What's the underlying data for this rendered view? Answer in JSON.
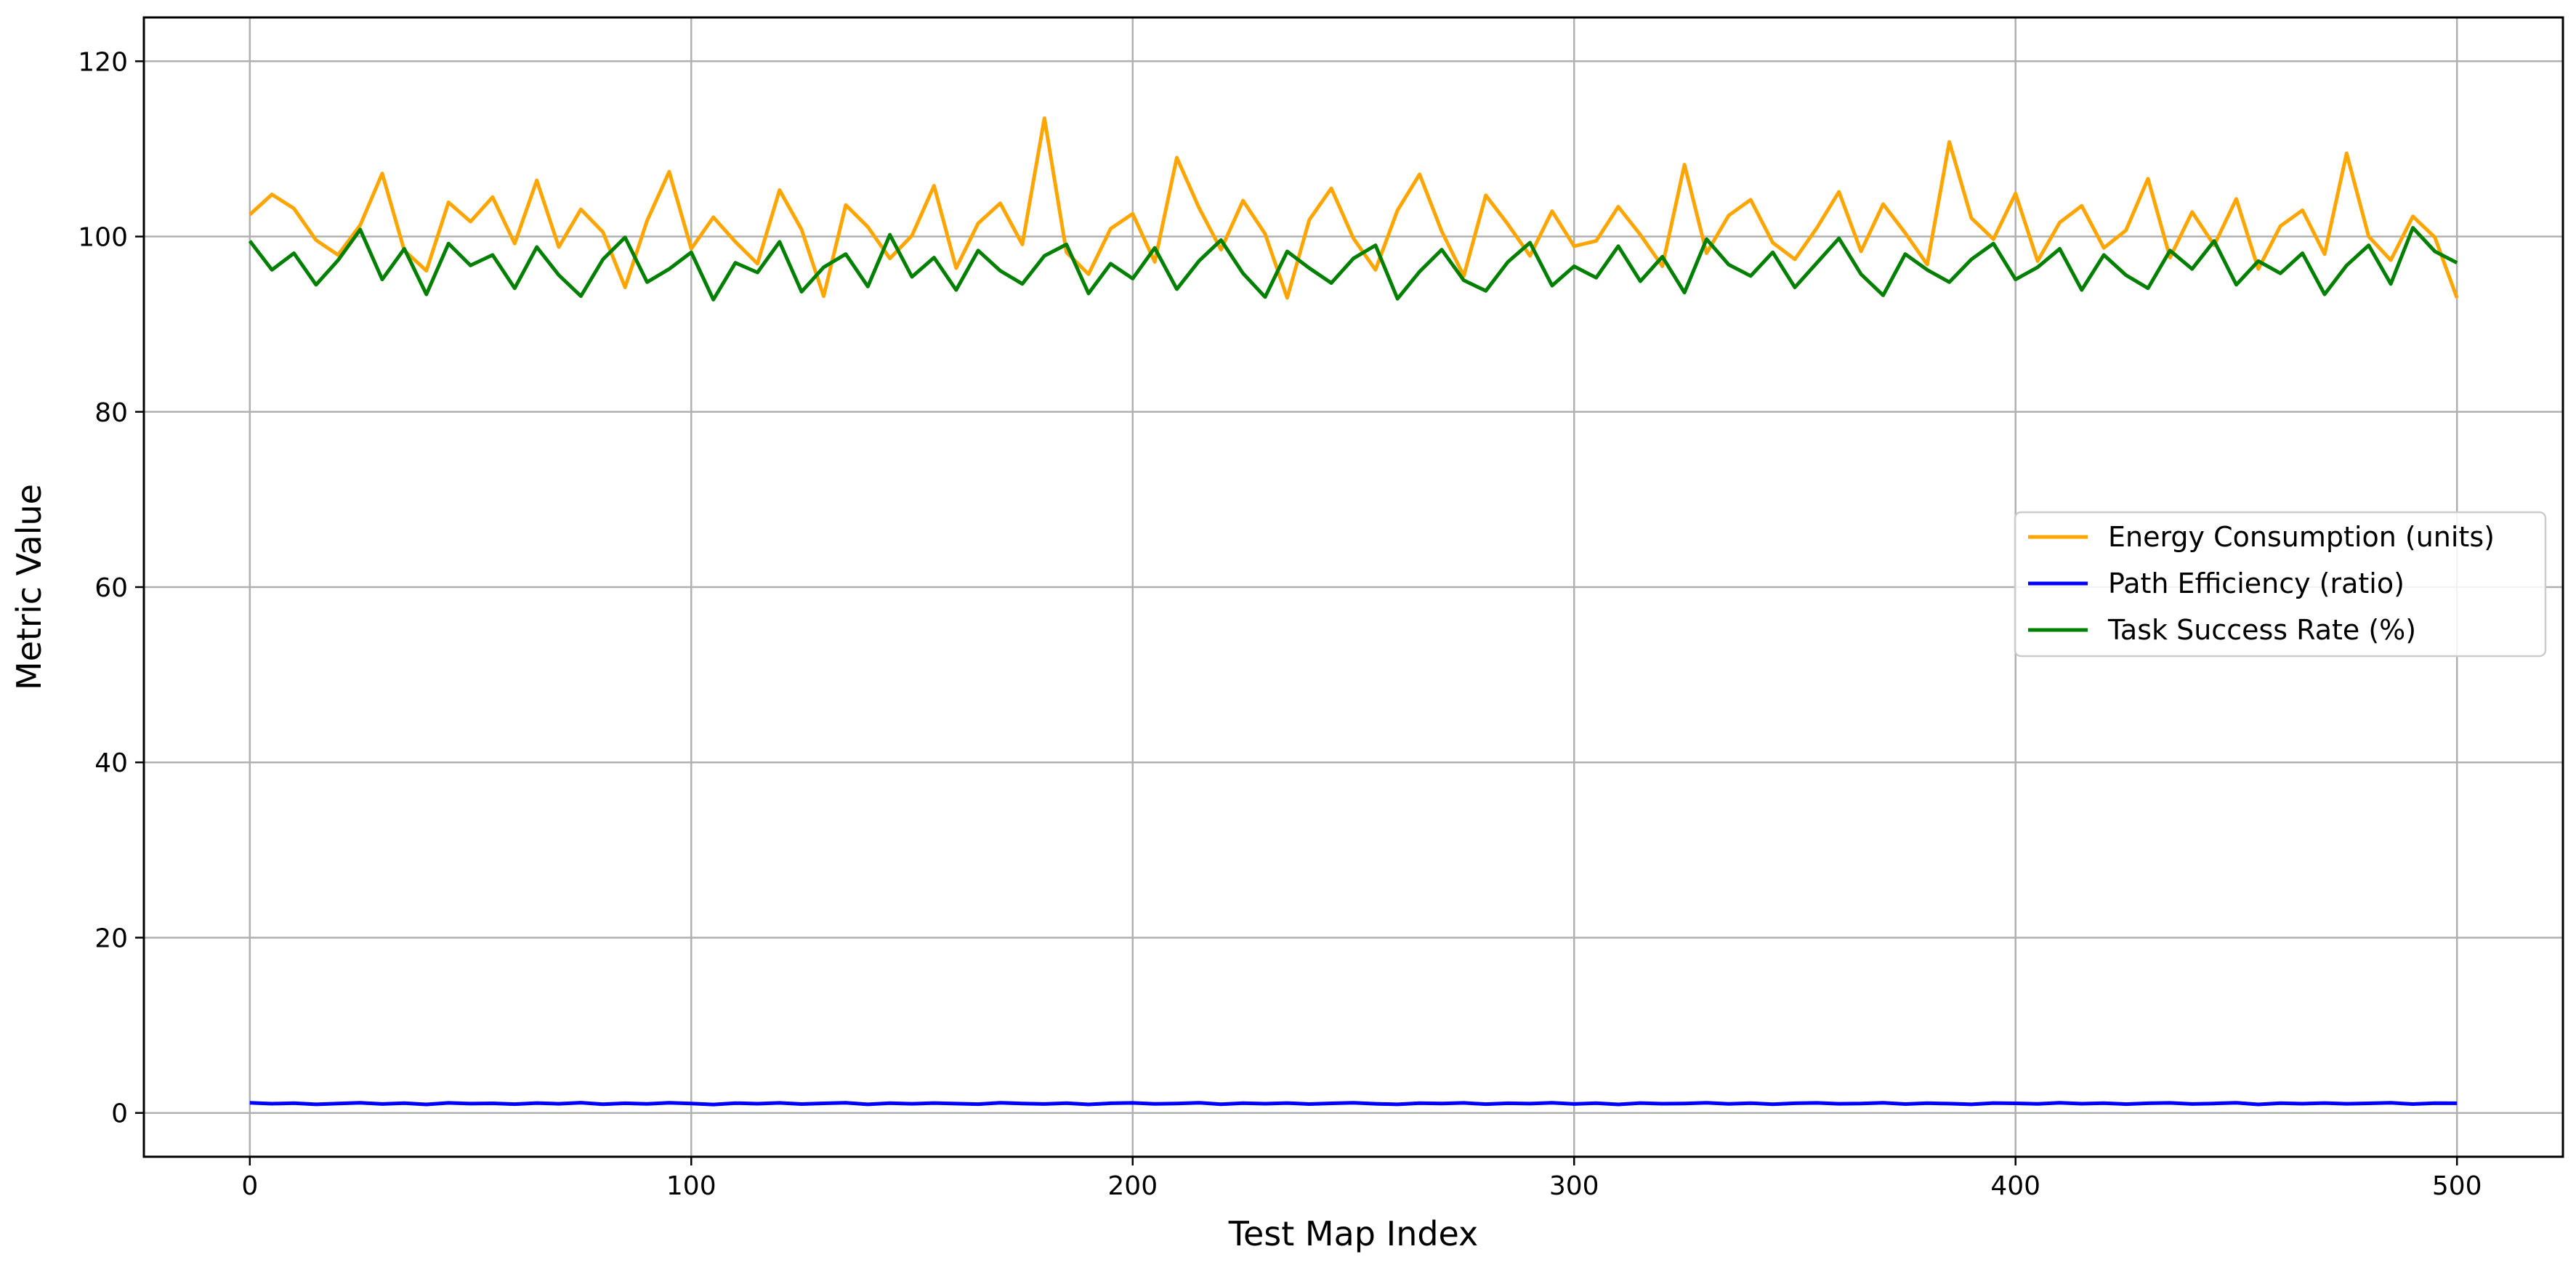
{
  "chart_data": {
    "type": "line",
    "title": "",
    "xlabel": "Test Map Index",
    "ylabel": "Metric Value",
    "xlim": [
      -24,
      524
    ],
    "ylim": [
      -5,
      125
    ],
    "xticks": [
      0,
      100,
      200,
      300,
      400,
      500
    ],
    "yticks": [
      0,
      20,
      40,
      60,
      80,
      100,
      120
    ],
    "grid": true,
    "legend_position": "center-right",
    "series": [
      {
        "name": "Energy Consumption (units)",
        "color": "#ffa500",
        "x_start": 0,
        "x_step": 5,
        "values": [
          102.5,
          104.8,
          103.2,
          99.6,
          97.9,
          101.3,
          107.2,
          98.4,
          96.1,
          103.9,
          101.7,
          104.5,
          99.2,
          106.4,
          98.8,
          103.1,
          100.5,
          94.2,
          101.8,
          107.4,
          98.6,
          102.2,
          99.4,
          96.9,
          105.3,
          100.8,
          93.2,
          103.6,
          101.1,
          97.5,
          100.1,
          105.8,
          96.4,
          101.5,
          103.8,
          99.1,
          113.5,
          98.2,
          95.7,
          100.9,
          102.6,
          97.1,
          109.0,
          103.3,
          98.5,
          104.1,
          100.3,
          93.0,
          101.9,
          105.5,
          99.8,
          96.2,
          103.0,
          107.1,
          100.6,
          95.5,
          104.7,
          101.4,
          97.8,
          102.9,
          98.9,
          99.5,
          103.4,
          100.2,
          96.6,
          108.2,
          98.1,
          102.4,
          104.2,
          99.3,
          97.4,
          101.0,
          105.1,
          98.3,
          103.7,
          100.4,
          96.8,
          110.8,
          102.1,
          99.7,
          104.9,
          97.2,
          101.6,
          103.5,
          98.7,
          100.7,
          106.6,
          97.6,
          102.8,
          99.0,
          104.3,
          96.3,
          101.2,
          103.0,
          98.0,
          109.5,
          100.0,
          97.3,
          102.3,
          99.9,
          93.0
        ]
      },
      {
        "name": "Path Efficiency (ratio)",
        "color": "#0000ff",
        "x_start": 0,
        "x_step": 5,
        "values": [
          1.15,
          1.05,
          1.12,
          0.98,
          1.08,
          1.16,
          1.02,
          1.11,
          0.97,
          1.14,
          1.06,
          1.09,
          1.0,
          1.13,
          1.04,
          1.17,
          0.99,
          1.1,
          1.03,
          1.15,
          1.07,
          0.96,
          1.12,
          1.05,
          1.14,
          1.01,
          1.09,
          1.16,
          0.98,
          1.11,
          1.04,
          1.13,
          1.06,
          1.0,
          1.15,
          1.08,
          1.02,
          1.12,
          0.97,
          1.1,
          1.14,
          1.03,
          1.07,
          1.16,
          0.99,
          1.11,
          1.05,
          1.13,
          1.01,
          1.09,
          1.15,
          1.04,
          0.98,
          1.12,
          1.07,
          1.14,
          1.0,
          1.1,
          1.06,
          1.16,
          1.02,
          1.11,
          0.97,
          1.13,
          1.05,
          1.08,
          1.15,
          1.03,
          1.12,
          0.99,
          1.1,
          1.14,
          1.04,
          1.07,
          1.16,
          1.01,
          1.11,
          1.06,
          0.98,
          1.13,
          1.09,
          1.03,
          1.15,
          1.05,
          1.12,
          1.0,
          1.1,
          1.14,
          1.02,
          1.08,
          1.16,
          0.97,
          1.11,
          1.05,
          1.13,
          1.04,
          1.09,
          1.15,
          1.01,
          1.12,
          1.1
        ]
      },
      {
        "name": "Task Success Rate (%)",
        "color": "#008000",
        "x_start": 0,
        "x_step": 5,
        "values": [
          99.5,
          96.2,
          98.1,
          94.5,
          97.3,
          100.8,
          95.1,
          98.6,
          93.4,
          99.2,
          96.7,
          97.9,
          94.1,
          98.8,
          95.6,
          93.2,
          97.4,
          99.9,
          94.8,
          96.3,
          98.2,
          92.8,
          97.0,
          95.9,
          99.4,
          93.7,
          96.5,
          98.0,
          94.3,
          100.2,
          95.4,
          97.6,
          93.9,
          98.4,
          96.1,
          94.6,
          97.8,
          99.1,
          93.5,
          96.9,
          95.2,
          98.7,
          94.0,
          97.2,
          99.6,
          95.8,
          93.1,
          98.3,
          96.4,
          94.7,
          97.5,
          99.0,
          92.9,
          96.0,
          98.5,
          95.0,
          93.8,
          97.1,
          99.3,
          94.4,
          96.6,
          95.3,
          98.9,
          94.9,
          97.7,
          93.6,
          99.7,
          96.8,
          95.5,
          98.2,
          94.2,
          97.0,
          99.8,
          95.7,
          93.3,
          98.0,
          96.2,
          94.8,
          97.4,
          99.2,
          95.1,
          96.5,
          98.6,
          93.9,
          97.9,
          95.6,
          94.1,
          98.4,
          96.3,
          99.5,
          94.5,
          97.2,
          95.8,
          98.1,
          93.4,
          96.7,
          99.0,
          94.6,
          101.0,
          98.3,
          97.0
        ]
      }
    ]
  }
}
